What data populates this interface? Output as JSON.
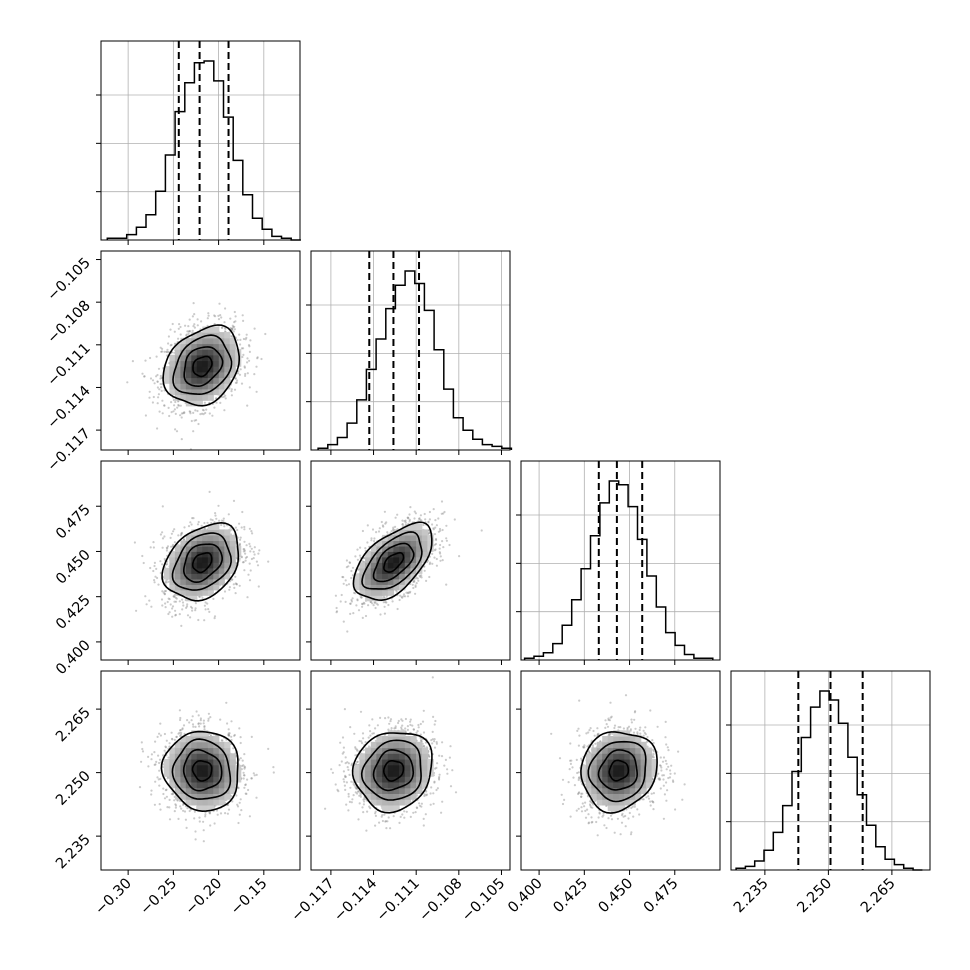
{
  "chart_data": {
    "type": "corner",
    "parameters": [
      {
        "range": [
          -0.33,
          -0.11
        ],
        "ticks": [
          -0.3,
          -0.25,
          -0.2,
          -0.15
        ],
        "tick_labels": [
          "−0.30",
          "−0.25",
          "−0.20",
          "−0.15"
        ],
        "quantiles": [
          -0.244,
          -0.221,
          -0.189
        ],
        "histogram": {
          "bin_start": -0.323,
          "bin_width": 0.0107,
          "counts": [
            1,
            1,
            3,
            7,
            14,
            27,
            47,
            71,
            87,
            98,
            99,
            88,
            68,
            44,
            25,
            12,
            6,
            2,
            1,
            0
          ]
        }
      },
      {
        "range": [
          -0.1184,
          -0.1044
        ],
        "ticks": [
          -0.117,
          -0.114,
          -0.111,
          -0.108,
          -0.105
        ],
        "tick_labels": [
          "−0.117",
          "−0.114",
          "−0.111",
          "−0.108",
          "−0.105"
        ],
        "quantiles": [
          -0.1143,
          -0.1126,
          -0.1108
        ],
        "histogram": {
          "bin_start": -0.1179,
          "bin_width": 0.00068,
          "counts": [
            1,
            3,
            7,
            15,
            28,
            45,
            62,
            79,
            92,
            100,
            93,
            78,
            56,
            34,
            18,
            11,
            6,
            3,
            2,
            1
          ]
        }
      },
      {
        "range": [
          0.39,
          0.5
        ],
        "ticks": [
          0.4,
          0.425,
          0.45,
          0.475
        ],
        "tick_labels": [
          "0.400",
          "0.425",
          "0.450",
          "0.475"
        ],
        "quantiles": [
          0.433,
          0.443,
          0.457
        ],
        "histogram": {
          "bin_start": 0.392,
          "bin_width": 0.0052,
          "counts": [
            1,
            2,
            4,
            9,
            19,
            33,
            50,
            68,
            86,
            98,
            96,
            84,
            66,
            46,
            29,
            15,
            8,
            3,
            1,
            1
          ]
        }
      },
      {
        "range": [
          2.227,
          2.274
        ],
        "ticks": [
          2.235,
          2.25,
          2.265
        ],
        "tick_labels": [
          "2.235",
          "2.250",
          "2.265"
        ],
        "quantiles": [
          2.2429,
          2.2505,
          2.2581
        ],
        "histogram": {
          "bin_start": 2.2282,
          "bin_width": 0.0022,
          "counts": [
            1,
            2,
            5,
            11,
            21,
            36,
            55,
            74,
            91,
            100,
            95,
            82,
            63,
            42,
            25,
            13,
            6,
            3,
            1,
            0
          ]
        }
      }
    ],
    "pairs": [
      {
        "x": 0,
        "y": 1,
        "center": [
          -0.218,
          -0.1125
        ],
        "sigma": [
          0.021,
          0.00138
        ],
        "rho": 0.25
      },
      {
        "x": 0,
        "y": 2,
        "center": [
          -0.218,
          0.444
        ],
        "sigma": [
          0.021,
          0.0105
        ],
        "rho": 0.3
      },
      {
        "x": 1,
        "y": 2,
        "center": [
          -0.1126,
          0.444
        ],
        "sigma": [
          0.00138,
          0.0105
        ],
        "rho": 0.55
      },
      {
        "x": 0,
        "y": 3,
        "center": [
          -0.218,
          2.2505
        ],
        "sigma": [
          0.021,
          0.0047
        ],
        "rho": -0.05
      },
      {
        "x": 1,
        "y": 3,
        "center": [
          -0.1126,
          2.2505
        ],
        "sigma": [
          0.00138,
          0.0047
        ],
        "rho": 0.1
      },
      {
        "x": 2,
        "y": 3,
        "center": [
          0.444,
          2.2505
        ],
        "sigma": [
          0.0105,
          0.0047
        ],
        "rho": 0.1
      }
    ],
    "contour_levels_sigma": [
      0.5,
      1.0,
      1.5,
      2.0
    ],
    "histogram_grid": true,
    "colors": {
      "ink": "#000000",
      "grid": "#b0b0b0",
      "scatter": "#8c8c8c"
    }
  }
}
